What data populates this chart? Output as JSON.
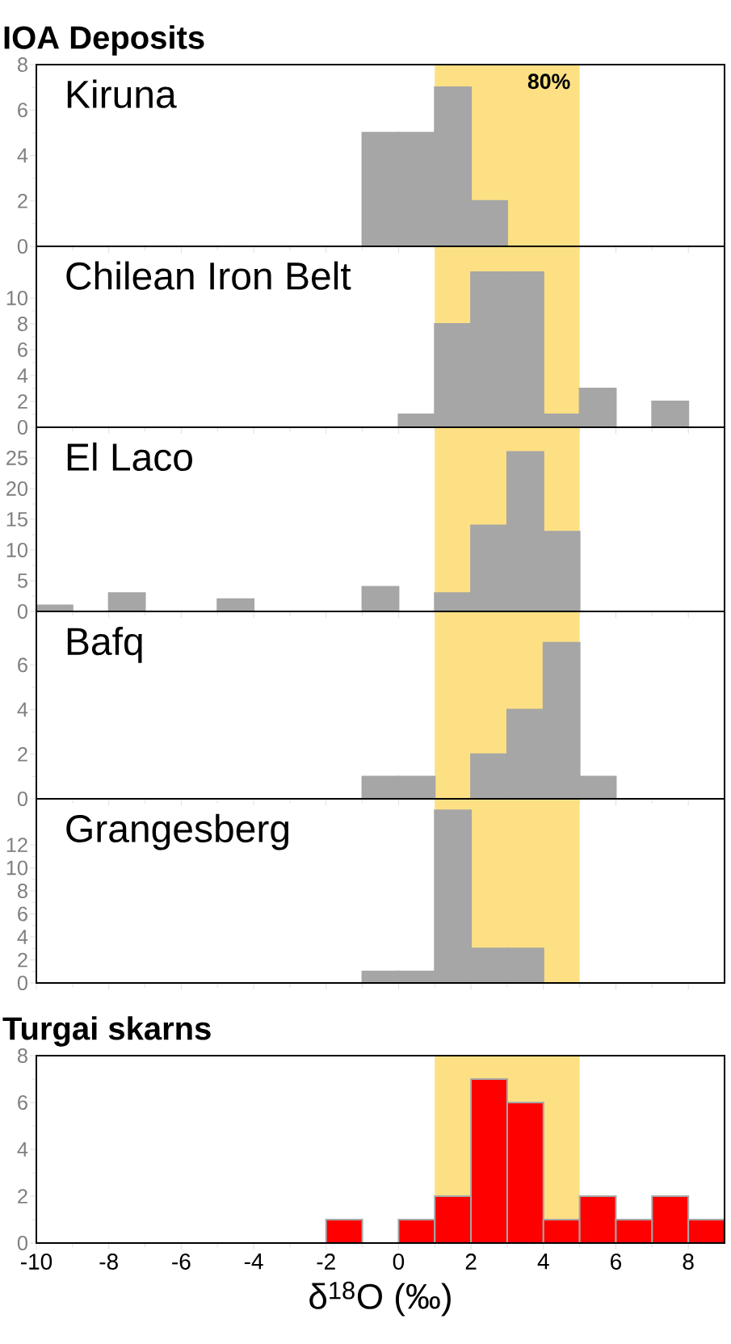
{
  "chart_data": [
    {
      "type": "histogram",
      "title": "IOA Deposits",
      "subtitle": "Kiruna",
      "bins": [
        -1,
        0,
        1,
        2,
        3
      ],
      "values": [
        5,
        5,
        7,
        2
      ],
      "color": "#a6a6a6",
      "xlim": [
        -10,
        9
      ],
      "xticks": [
        -10,
        -8,
        -6,
        -4,
        -2,
        0,
        2,
        4,
        6,
        8
      ],
      "ylim": [
        0,
        8
      ],
      "yticks": [
        0,
        2,
        4,
        6,
        8
      ],
      "tick_labels": "y",
      "bands": [
        {
          "axis": "x",
          "from": 1,
          "to": 5,
          "label": "80%",
          "color": "#fde084"
        }
      ]
    },
    {
      "type": "histogram",
      "subtitle": "Chilean Iron Belt",
      "bins": [
        0,
        1,
        2,
        3,
        4,
        5,
        6,
        7,
        8
      ],
      "values": [
        1,
        8,
        12,
        12,
        1,
        3,
        0,
        2
      ],
      "color": "#a6a6a6",
      "xlim": [
        -10,
        9
      ],
      "xticks": [
        -10,
        -8,
        -6,
        -4,
        -2,
        0,
        2,
        4,
        6,
        8
      ],
      "ylim": [
        0,
        14
      ],
      "yticks": [
        0,
        2,
        4,
        6,
        8,
        10
      ],
      "tick_labels": "y",
      "bands": [
        {
          "axis": "x",
          "from": 1,
          "to": 5,
          "color": "#fde084"
        }
      ]
    },
    {
      "type": "histogram",
      "subtitle": "El Laco",
      "bins": [
        -10,
        -9,
        -8,
        -7,
        -6,
        -5,
        -4,
        -3,
        -2,
        -1,
        0,
        1,
        2,
        3,
        4,
        5
      ],
      "values": [
        1,
        0,
        3,
        0,
        0,
        2,
        0,
        0,
        0,
        4,
        0,
        3,
        14,
        26,
        13
      ],
      "color": "#a6a6a6",
      "xlim": [
        -10,
        9
      ],
      "xticks": [
        -10,
        -8,
        -6,
        -4,
        -2,
        0,
        2,
        4,
        6,
        8
      ],
      "ylim": [
        0,
        30
      ],
      "yticks": [
        0,
        5,
        10,
        15,
        20,
        25
      ],
      "tick_labels": "y",
      "bands": [
        {
          "axis": "x",
          "from": 1,
          "to": 5,
          "color": "#fde084"
        }
      ]
    },
    {
      "type": "histogram",
      "subtitle": "Bafq",
      "bins": [
        -1,
        0,
        1,
        2,
        3,
        4,
        5,
        6
      ],
      "values": [
        1,
        1,
        0,
        2,
        4,
        7,
        1
      ],
      "color": "#a6a6a6",
      "xlim": [
        -10,
        9
      ],
      "xticks": [
        -10,
        -8,
        -6,
        -4,
        -2,
        0,
        2,
        4,
        6,
        8
      ],
      "ylim": [
        0,
        8.4
      ],
      "yticks": [
        0,
        2,
        4,
        6
      ],
      "tick_labels": "y",
      "bands": [
        {
          "axis": "x",
          "from": 1,
          "to": 5,
          "color": "#fde084"
        }
      ]
    },
    {
      "type": "histogram",
      "subtitle": "Grangesberg",
      "bins": [
        -1,
        0,
        1,
        2,
        3,
        4
      ],
      "values": [
        1,
        1,
        15,
        3,
        3
      ],
      "color": "#a6a6a6",
      "xlim": [
        -10,
        9
      ],
      "xticks": [
        -10,
        -8,
        -6,
        -4,
        -2,
        0,
        2,
        4,
        6,
        8
      ],
      "ylim": [
        0,
        16
      ],
      "yticks": [
        0,
        2,
        4,
        6,
        8,
        10,
        12
      ],
      "tick_labels": "y",
      "bands": [
        {
          "axis": "x",
          "from": 1,
          "to": 5,
          "color": "#fde084"
        }
      ]
    },
    {
      "type": "histogram",
      "title": "Turgai skarns",
      "xlabel": "δ$^{18}$O (‰)",
      "bins": [
        -2,
        -1,
        0,
        1,
        2,
        3,
        4,
        5,
        6,
        7,
        8,
        9
      ],
      "values": [
        1,
        0,
        1,
        2,
        7,
        6,
        1,
        2,
        1,
        2,
        1
      ],
      "color": "#ff0000",
      "xlim": [
        -10,
        9
      ],
      "xticks": [
        -10,
        -8,
        -6,
        -4,
        -2,
        0,
        2,
        4,
        6,
        8
      ],
      "ylim": [
        0,
        8
      ],
      "yticks": [
        0,
        2,
        4,
        6,
        8
      ],
      "bands": [
        {
          "axis": "x",
          "from": 1,
          "to": 5,
          "color": "#fde084"
        }
      ]
    }
  ]
}
